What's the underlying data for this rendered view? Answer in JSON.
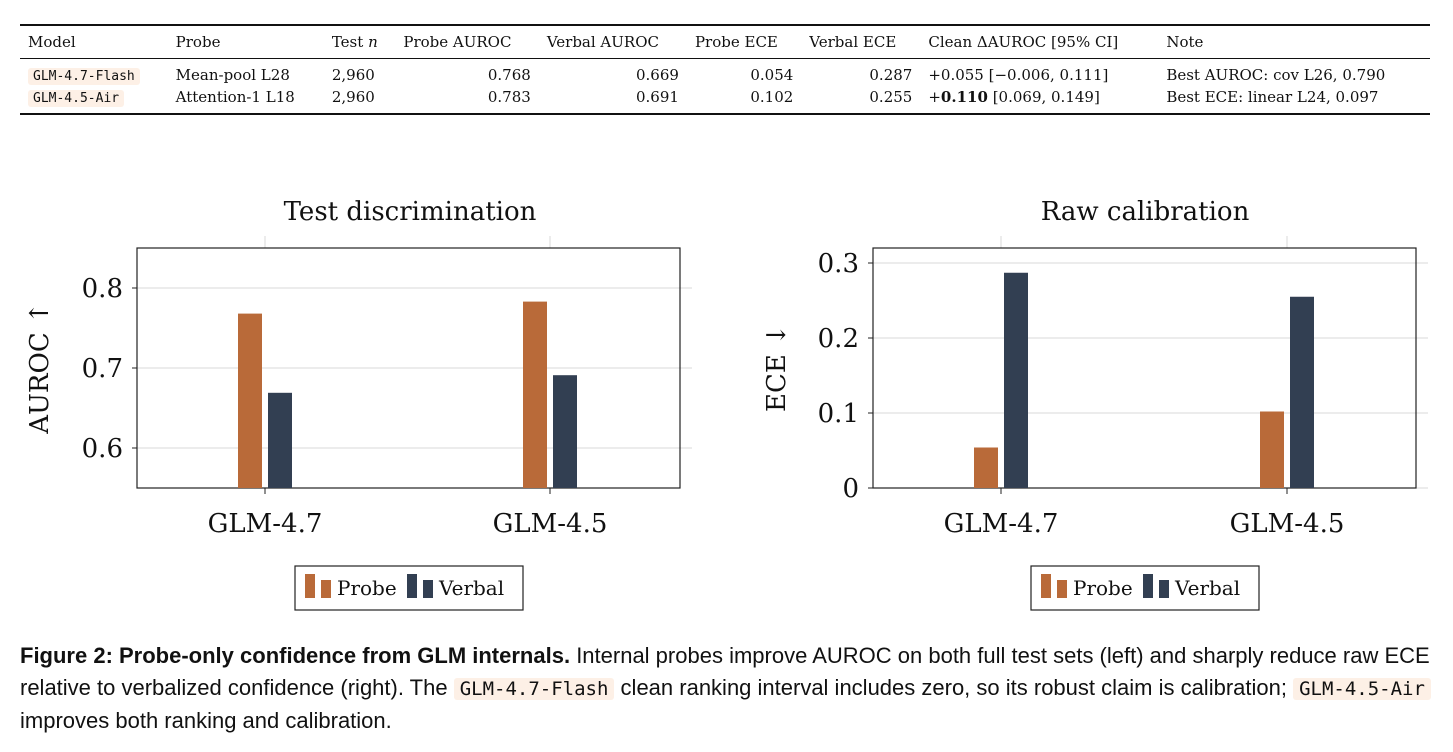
{
  "table": {
    "headers": [
      "Model",
      "Probe",
      "Test n",
      "Probe AUROC",
      "Verbal AUROC",
      "Probe ECE",
      "Verbal ECE",
      "Clean ΔAUROC [95% CI]",
      "Note"
    ],
    "header_test_prefix": "Test ",
    "header_test_var": "n",
    "rows": [
      {
        "model": "GLM-4.7-Flash",
        "probe": "Mean-pool L28",
        "n": "2,960",
        "probe_auroc": "0.768",
        "verbal_auroc": "0.669",
        "probe_ece": "0.054",
        "verbal_ece": "0.287",
        "delta_value": "+0.055",
        "delta_ci": "[−0.006, 0.111]",
        "note": "Best AUROC: cov L26, 0.790"
      },
      {
        "model": "GLM-4.5-Air",
        "probe": "Attention-1 L18",
        "n": "2,960",
        "probe_auroc": "0.783",
        "verbal_auroc": "0.691",
        "probe_ece": "0.102",
        "verbal_ece": "0.255",
        "delta_sign": "+",
        "delta_bold": "0.110",
        "delta_ci": "[0.069, 0.149]",
        "note": "Best ECE: linear L24, 0.097"
      }
    ]
  },
  "chart_data": [
    {
      "type": "bar",
      "title": "Test discrimination",
      "ylabel": "AUROC ↑",
      "categories": [
        "GLM-4.7",
        "GLM-4.5"
      ],
      "series": [
        {
          "name": "Probe",
          "values": [
            0.768,
            0.783
          ]
        },
        {
          "name": "Verbal",
          "values": [
            0.669,
            0.691
          ]
        }
      ],
      "ylim": [
        0.55,
        0.85
      ],
      "yticks": [
        "0.6",
        "0.7",
        "0.8"
      ],
      "grid": true,
      "legend": "bottom-center"
    },
    {
      "type": "bar",
      "title": "Raw calibration",
      "ylabel": "ECE ↓",
      "categories": [
        "GLM-4.7",
        "GLM-4.5"
      ],
      "series": [
        {
          "name": "Probe",
          "values": [
            0.054,
            0.102
          ]
        },
        {
          "name": "Verbal",
          "values": [
            0.287,
            0.255
          ]
        }
      ],
      "ylim": [
        0,
        0.32
      ],
      "yticks": [
        "0",
        "0.1",
        "0.2",
        "0.3"
      ],
      "grid": true,
      "legend": "bottom-center"
    }
  ],
  "colors": {
    "probe": "#b96a39",
    "verbal": "#323f52",
    "grid": "#d9d9d9",
    "code_bg": "#fdf0e6"
  },
  "caption": {
    "label": "Figure 2: Probe-only confidence from GLM internals.",
    "text1": " Internal probes improve AUROC on both full test sets (left) and sharply reduce raw ECE relative to verbalized confidence (right). The ",
    "code1": "GLM-4.7-Flash",
    "text2": " clean ranking interval includes zero, so its robust claim is calibration; ",
    "code2": "GLM-4.5-Air",
    "text3": " improves both ranking and calibration."
  }
}
